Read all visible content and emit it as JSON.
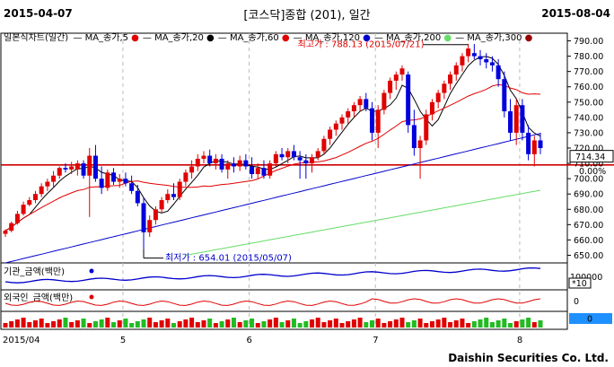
{
  "header": {
    "date_start": "2015-04-07",
    "title": "[코스닥]종합 (201), 일간",
    "date_end": "2015-08-04"
  },
  "legend": {
    "label": "일본식차트(일간)",
    "items": [
      {
        "text": "MA_종가,5",
        "color": "#e00000"
      },
      {
        "text": "MA_종가,20",
        "color": "#000000"
      },
      {
        "text": "MA_종가,60",
        "color": "#e00000"
      },
      {
        "text": "MA_종가,120",
        "color": "#0000cc"
      },
      {
        "text": "MA_종가,200",
        "color": "#66dd66"
      },
      {
        "text": "MA_종가,300",
        "color": "#990000"
      }
    ]
  },
  "annotations": {
    "high": "최고가 : 788.13 (2015/07/21)",
    "low": "최저가 : 654.01 (2015/05/07)"
  },
  "price_axis": {
    "ticks": [
      "790.00",
      "780.00",
      "770.00",
      "760.00",
      "750.00",
      "740.00",
      "730.00",
      "720.00",
      "710.00",
      "700.00",
      "690.00",
      "680.00",
      "670.00",
      "660.00",
      "650.00"
    ],
    "current_value": "714.34",
    "change_pct": "0.00%"
  },
  "sub_panels": {
    "institution": {
      "label": "기관_금액(백만)",
      "tick": "100000",
      "scale": "*10"
    },
    "foreign": {
      "label": "외국인_금액(백만)",
      "tick": "0",
      "badge": "0"
    }
  },
  "x_axis": {
    "labels": [
      "2015/04",
      "5",
      "6",
      "7",
      "8"
    ]
  },
  "footer": {
    "brand": "Daishin Securities Co. Ltd."
  },
  "colors": {
    "up": "#e00000",
    "down": "#0000dd",
    "ref_line": "#cc0000",
    "ma120": "#0000cc",
    "ma200": "#66dd66"
  },
  "chart_data": {
    "type": "candlestick",
    "ylim": [
      645,
      795
    ],
    "x_labels": [
      "2015/04",
      "5",
      "6",
      "7",
      "8"
    ],
    "reference_line": 709,
    "high": {
      "value": 788.13,
      "date": "2015/07/21"
    },
    "low": {
      "value": 654.01,
      "date": "2015/05/07"
    },
    "candles": [
      [
        664,
        667,
        662,
        666
      ],
      [
        666,
        672,
        665,
        671
      ],
      [
        671,
        679,
        670,
        677
      ],
      [
        677,
        685,
        676,
        683
      ],
      [
        683,
        688,
        682,
        686
      ],
      [
        686,
        692,
        684,
        690
      ],
      [
        690,
        697,
        688,
        695
      ],
      [
        695,
        700,
        692,
        698
      ],
      [
        698,
        705,
        694,
        702
      ],
      [
        702,
        708,
        700,
        707
      ],
      [
        707,
        710,
        704,
        706
      ],
      [
        706,
        711,
        703,
        708
      ],
      [
        706,
        712,
        702,
        710
      ],
      [
        710,
        712,
        700,
        702
      ],
      [
        702,
        720,
        675,
        715
      ],
      [
        715,
        722,
        698,
        700
      ],
      [
        700,
        708,
        690,
        694
      ],
      [
        694,
        706,
        692,
        704
      ],
      [
        704,
        707,
        696,
        698
      ],
      [
        698,
        703,
        694,
        700
      ],
      [
        700,
        704,
        695,
        697
      ],
      [
        697,
        702,
        690,
        692
      ],
      [
        692,
        696,
        682,
        684
      ],
      [
        684,
        688,
        654,
        665
      ],
      [
        665,
        676,
        662,
        673
      ],
      [
        673,
        682,
        670,
        680
      ],
      [
        680,
        688,
        678,
        686
      ],
      [
        686,
        693,
        684,
        690
      ],
      [
        690,
        697,
        686,
        688
      ],
      [
        688,
        700,
        686,
        698
      ],
      [
        698,
        706,
        695,
        704
      ],
      [
        704,
        712,
        700,
        708
      ],
      [
        708,
        716,
        705,
        713
      ],
      [
        713,
        718,
        710,
        715
      ],
      [
        715,
        719,
        708,
        710
      ],
      [
        710,
        716,
        706,
        713
      ],
      [
        713,
        716,
        704,
        706
      ],
      [
        706,
        712,
        700,
        710
      ],
      [
        710,
        714,
        704,
        708
      ],
      [
        708,
        715,
        705,
        712
      ],
      [
        712,
        716,
        706,
        708
      ],
      [
        708,
        714,
        700,
        703
      ],
      [
        703,
        710,
        700,
        707
      ],
      [
        707,
        712,
        700,
        702
      ],
      [
        702,
        712,
        700,
        710
      ],
      [
        710,
        718,
        708,
        716
      ],
      [
        716,
        720,
        712,
        714
      ],
      [
        714,
        720,
        710,
        718
      ],
      [
        718,
        722,
        712,
        714
      ],
      [
        714,
        718,
        700,
        712
      ],
      [
        712,
        716,
        700,
        710
      ],
      [
        710,
        716,
        704,
        714
      ],
      [
        714,
        720,
        712,
        718
      ],
      [
        718,
        728,
        716,
        726
      ],
      [
        726,
        734,
        722,
        732
      ],
      [
        732,
        738,
        728,
        736
      ],
      [
        736,
        742,
        732,
        740
      ],
      [
        740,
        746,
        736,
        744
      ],
      [
        744,
        750,
        740,
        748
      ],
      [
        748,
        754,
        744,
        752
      ],
      [
        752,
        756,
        744,
        746
      ],
      [
        746,
        750,
        725,
        730
      ],
      [
        730,
        748,
        720,
        745
      ],
      [
        745,
        758,
        742,
        756
      ],
      [
        756,
        766,
        752,
        764
      ],
      [
        764,
        770,
        758,
        768
      ],
      [
        768,
        774,
        764,
        772
      ],
      [
        768,
        770,
        730,
        735
      ],
      [
        735,
        745,
        715,
        720
      ],
      [
        720,
        728,
        700,
        725
      ],
      [
        725,
        745,
        722,
        742
      ],
      [
        742,
        752,
        738,
        750
      ],
      [
        750,
        758,
        746,
        756
      ],
      [
        756,
        764,
        752,
        762
      ],
      [
        762,
        770,
        758,
        768
      ],
      [
        768,
        776,
        764,
        774
      ],
      [
        774,
        782,
        770,
        780
      ],
      [
        780,
        788,
        776,
        785
      ],
      [
        782,
        788,
        778,
        780
      ],
      [
        780,
        784,
        774,
        778
      ],
      [
        778,
        782,
        772,
        776
      ],
      [
        776,
        780,
        770,
        774
      ],
      [
        774,
        778,
        760,
        765
      ],
      [
        765,
        770,
        740,
        744
      ],
      [
        744,
        752,
        725,
        730
      ],
      [
        730,
        752,
        722,
        748
      ],
      [
        748,
        752,
        725,
        730
      ],
      [
        730,
        735,
        712,
        716
      ],
      [
        716,
        728,
        708,
        725
      ],
      [
        725,
        730,
        716,
        720
      ]
    ]
  }
}
